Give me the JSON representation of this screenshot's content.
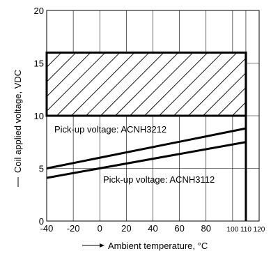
{
  "chart_data": {
    "type": "line",
    "xlabel": "Ambient temperature, °C",
    "ylabel": "Coil applied voltage, VDC",
    "xlim": [
      -40,
      120
    ],
    "ylim": [
      0,
      20
    ],
    "x_ticks": [
      -40,
      -20,
      0,
      20,
      40,
      60,
      80,
      100,
      110,
      120
    ],
    "y_ticks": [
      0,
      5,
      10,
      15,
      20
    ],
    "grid": true,
    "hatched_region": {
      "x": [
        -40,
        110
      ],
      "y": [
        10,
        16
      ]
    },
    "boundary_x": 110,
    "series": [
      {
        "name": "Pick-up voltage: ACNH3212",
        "x": [
          -40,
          110
        ],
        "y": [
          5.0,
          8.8
        ]
      },
      {
        "name": "Pick-up voltage: ACNH3112",
        "x": [
          -40,
          110
        ],
        "y": [
          4.1,
          7.5
        ]
      }
    ]
  }
}
